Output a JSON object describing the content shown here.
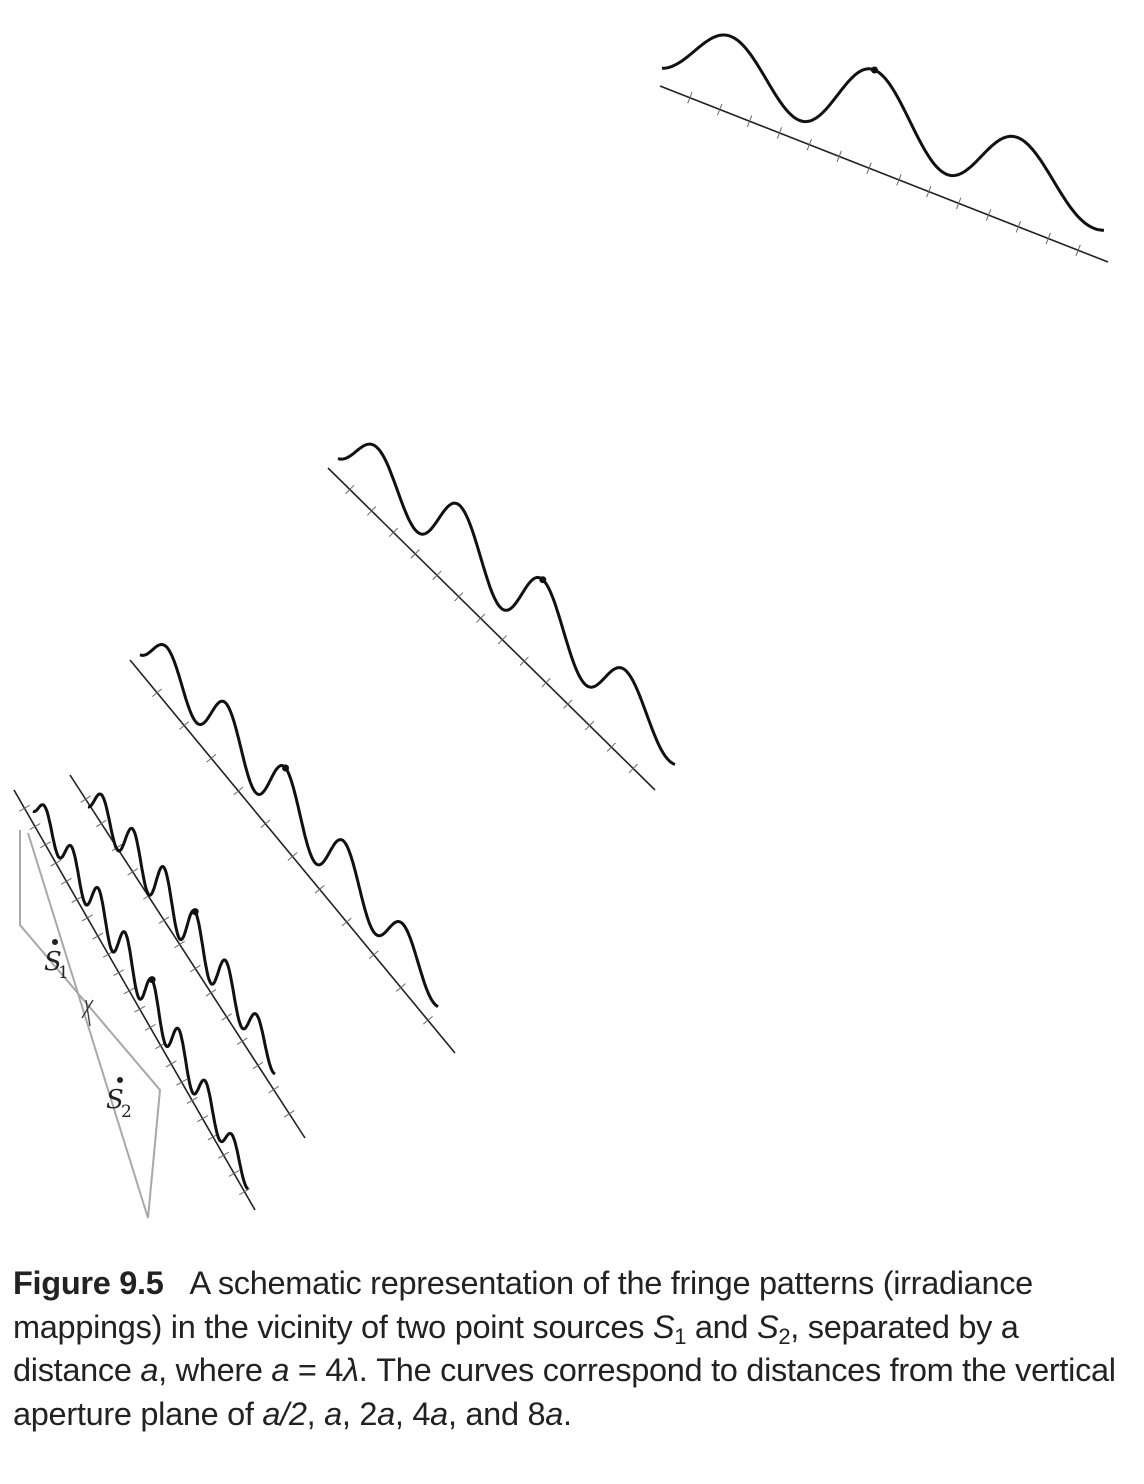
{
  "figure": {
    "sources": [
      {
        "symbol": "S",
        "subscript": "1"
      },
      {
        "symbol": "S",
        "subscript": "2"
      }
    ],
    "aperture_plane": "vertical aperture plane",
    "fringe_patterns": [
      {
        "distance": "a/2"
      },
      {
        "distance": "a"
      },
      {
        "distance": "2a"
      },
      {
        "distance": "4a"
      },
      {
        "distance": "8a"
      }
    ]
  },
  "caption": {
    "label": "Figure 9.5",
    "t1": "A schematic representation of the fringe patterns (irradiance mappings) in the vicinity of two point sources ",
    "s1_symbol": "S",
    "s1_sub": "1",
    "t2": " and ",
    "s2_symbol": "S",
    "s2_sub": "2",
    "t3": ", separated by a distance ",
    "a1": "a",
    "t4": ", where ",
    "a2": "a",
    "t5": " = 4",
    "lambda": "λ",
    "t6": ". The curves correspond to distances from the vertical aperture plane of ",
    "d1": "a/2",
    "sep1": ", ",
    "d2": "a",
    "sep2": ", 2",
    "d3": "a",
    "sep3": ", 4",
    "d4": "a",
    "sep4": ", and 8",
    "d5": "a",
    "end": "."
  }
}
